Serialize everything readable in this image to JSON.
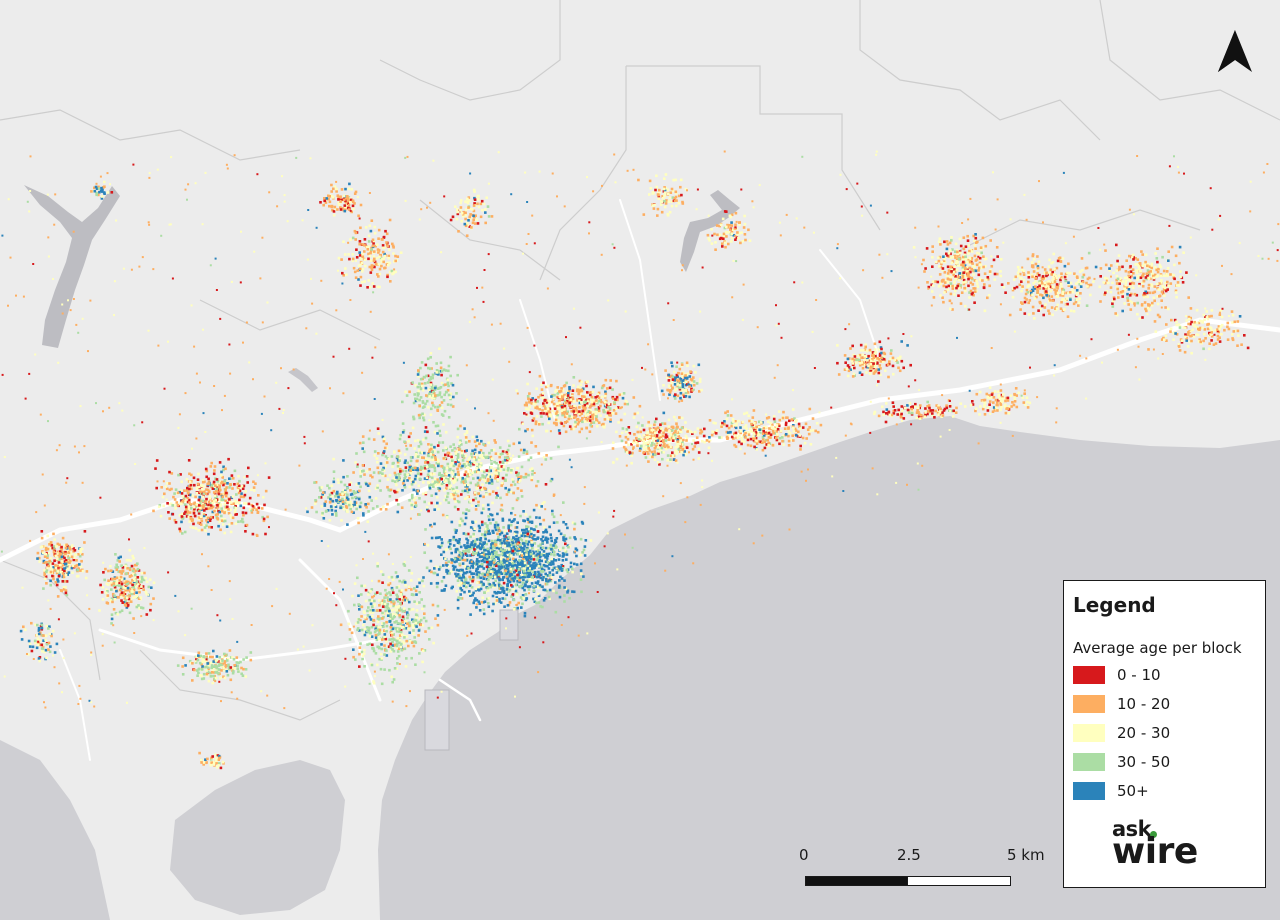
{
  "legend": {
    "title": "Legend",
    "subtitle": "Average age per block",
    "items": [
      {
        "label": "0 - 10",
        "color": "#d7191c"
      },
      {
        "label": "10 - 20",
        "color": "#fdae61"
      },
      {
        "label": "20 - 30",
        "color": "#ffffbf"
      },
      {
        "label": "30 - 50",
        "color": "#abdda4"
      },
      {
        "label": "50+",
        "color": "#2b83ba"
      }
    ]
  },
  "scale_bar": {
    "labels": [
      "0",
      "2.5",
      "5 km"
    ]
  },
  "logo": {
    "line1": "ask",
    "line2": "wire"
  },
  "north_arrow": {
    "icon": "north-arrow-icon"
  },
  "colors": {
    "land": "#ececec",
    "sea": "#cfcfd3",
    "roads": "#ffffff",
    "boundaries": "#c8c8c8"
  }
}
